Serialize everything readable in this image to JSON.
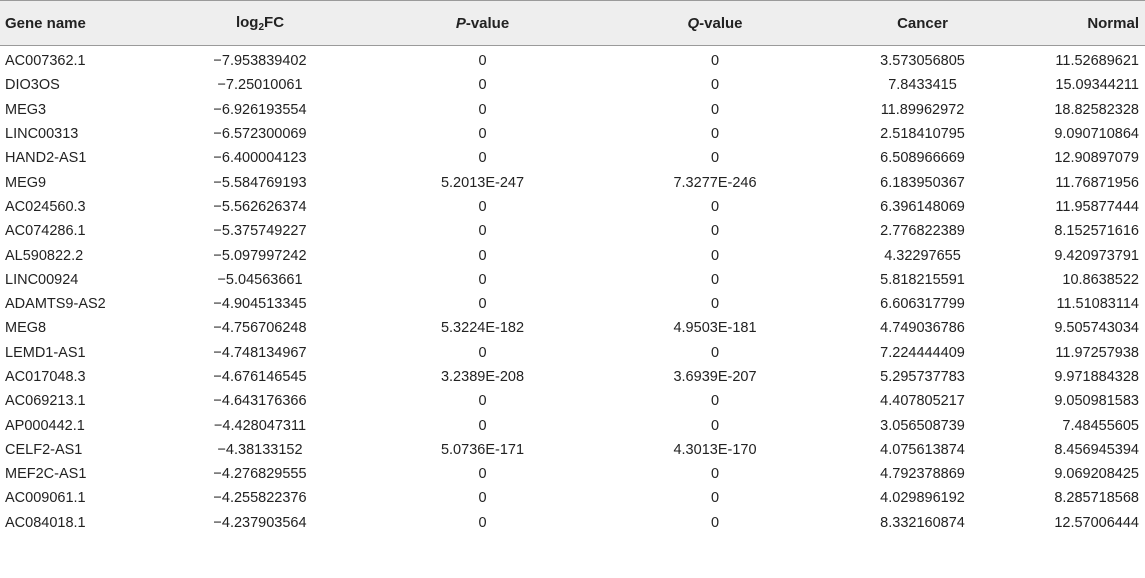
{
  "table": {
    "headers": {
      "gene": "Gene name",
      "log_prefix": "log",
      "log_sub": "2",
      "log_suffix": "FC",
      "p_italic": "P",
      "p_rest": "-value",
      "q_italic": "Q",
      "q_rest": "-value",
      "cancer": "Cancer",
      "normal": "Normal"
    },
    "rows": [
      {
        "gene": "AC007362.1",
        "log2fc": "−7.953839402",
        "p": "0",
        "q": "0",
        "cancer": "3.573056805",
        "normal": "11.52689621"
      },
      {
        "gene": "DIO3OS",
        "log2fc": "−7.25010061",
        "p": "0",
        "q": "0",
        "cancer": "7.8433415",
        "normal": "15.09344211"
      },
      {
        "gene": "MEG3",
        "log2fc": "−6.926193554",
        "p": "0",
        "q": "0",
        "cancer": "11.89962972",
        "normal": "18.82582328"
      },
      {
        "gene": "LINC00313",
        "log2fc": "−6.572300069",
        "p": "0",
        "q": "0",
        "cancer": "2.518410795",
        "normal": "9.090710864"
      },
      {
        "gene": "HAND2-AS1",
        "log2fc": "−6.400004123",
        "p": "0",
        "q": "0",
        "cancer": "6.508966669",
        "normal": "12.90897079"
      },
      {
        "gene": "MEG9",
        "log2fc": "−5.584769193",
        "p": "5.2013E-247",
        "q": "7.3277E-246",
        "cancer": "6.183950367",
        "normal": "11.76871956"
      },
      {
        "gene": "AC024560.3",
        "log2fc": "−5.562626374",
        "p": "0",
        "q": "0",
        "cancer": "6.396148069",
        "normal": "11.95877444"
      },
      {
        "gene": "AC074286.1",
        "log2fc": "−5.375749227",
        "p": "0",
        "q": "0",
        "cancer": "2.776822389",
        "normal": "8.152571616"
      },
      {
        "gene": "AL590822.2",
        "log2fc": "−5.097997242",
        "p": "0",
        "q": "0",
        "cancer": "4.32297655",
        "normal": "9.420973791"
      },
      {
        "gene": "LINC00924",
        "log2fc": "−5.04563661",
        "p": "0",
        "q": "0",
        "cancer": "5.818215591",
        "normal": "10.8638522"
      },
      {
        "gene": "ADAMTS9-AS2",
        "log2fc": "−4.904513345",
        "p": "0",
        "q": "0",
        "cancer": "6.606317799",
        "normal": "11.51083114"
      },
      {
        "gene": "MEG8",
        "log2fc": "−4.756706248",
        "p": "5.3224E-182",
        "q": "4.9503E-181",
        "cancer": "4.749036786",
        "normal": "9.505743034"
      },
      {
        "gene": "LEMD1-AS1",
        "log2fc": "−4.748134967",
        "p": "0",
        "q": "0",
        "cancer": "7.224444409",
        "normal": "11.97257938"
      },
      {
        "gene": "AC017048.3",
        "log2fc": "−4.676146545",
        "p": "3.2389E-208",
        "q": "3.6939E-207",
        "cancer": "5.295737783",
        "normal": "9.971884328"
      },
      {
        "gene": "AC069213.1",
        "log2fc": "−4.643176366",
        "p": "0",
        "q": "0",
        "cancer": "4.407805217",
        "normal": "9.050981583"
      },
      {
        "gene": "AP000442.1",
        "log2fc": "−4.428047311",
        "p": "0",
        "q": "0",
        "cancer": "3.056508739",
        "normal": "7.48455605"
      },
      {
        "gene": "CELF2-AS1",
        "log2fc": "−4.38133152",
        "p": "5.0736E-171",
        "q": "4.3013E-170",
        "cancer": "4.075613874",
        "normal": "8.456945394"
      },
      {
        "gene": "MEF2C-AS1",
        "log2fc": "−4.276829555",
        "p": "0",
        "q": "0",
        "cancer": "4.792378869",
        "normal": "9.069208425"
      },
      {
        "gene": "AC009061.1",
        "log2fc": "−4.255822376",
        "p": "0",
        "q": "0",
        "cancer": "4.029896192",
        "normal": "8.285718568"
      },
      {
        "gene": "AC084018.1",
        "log2fc": "−4.237903564",
        "p": "0",
        "q": "0",
        "cancer": "8.332160874",
        "normal": "12.57006444"
      }
    ]
  }
}
